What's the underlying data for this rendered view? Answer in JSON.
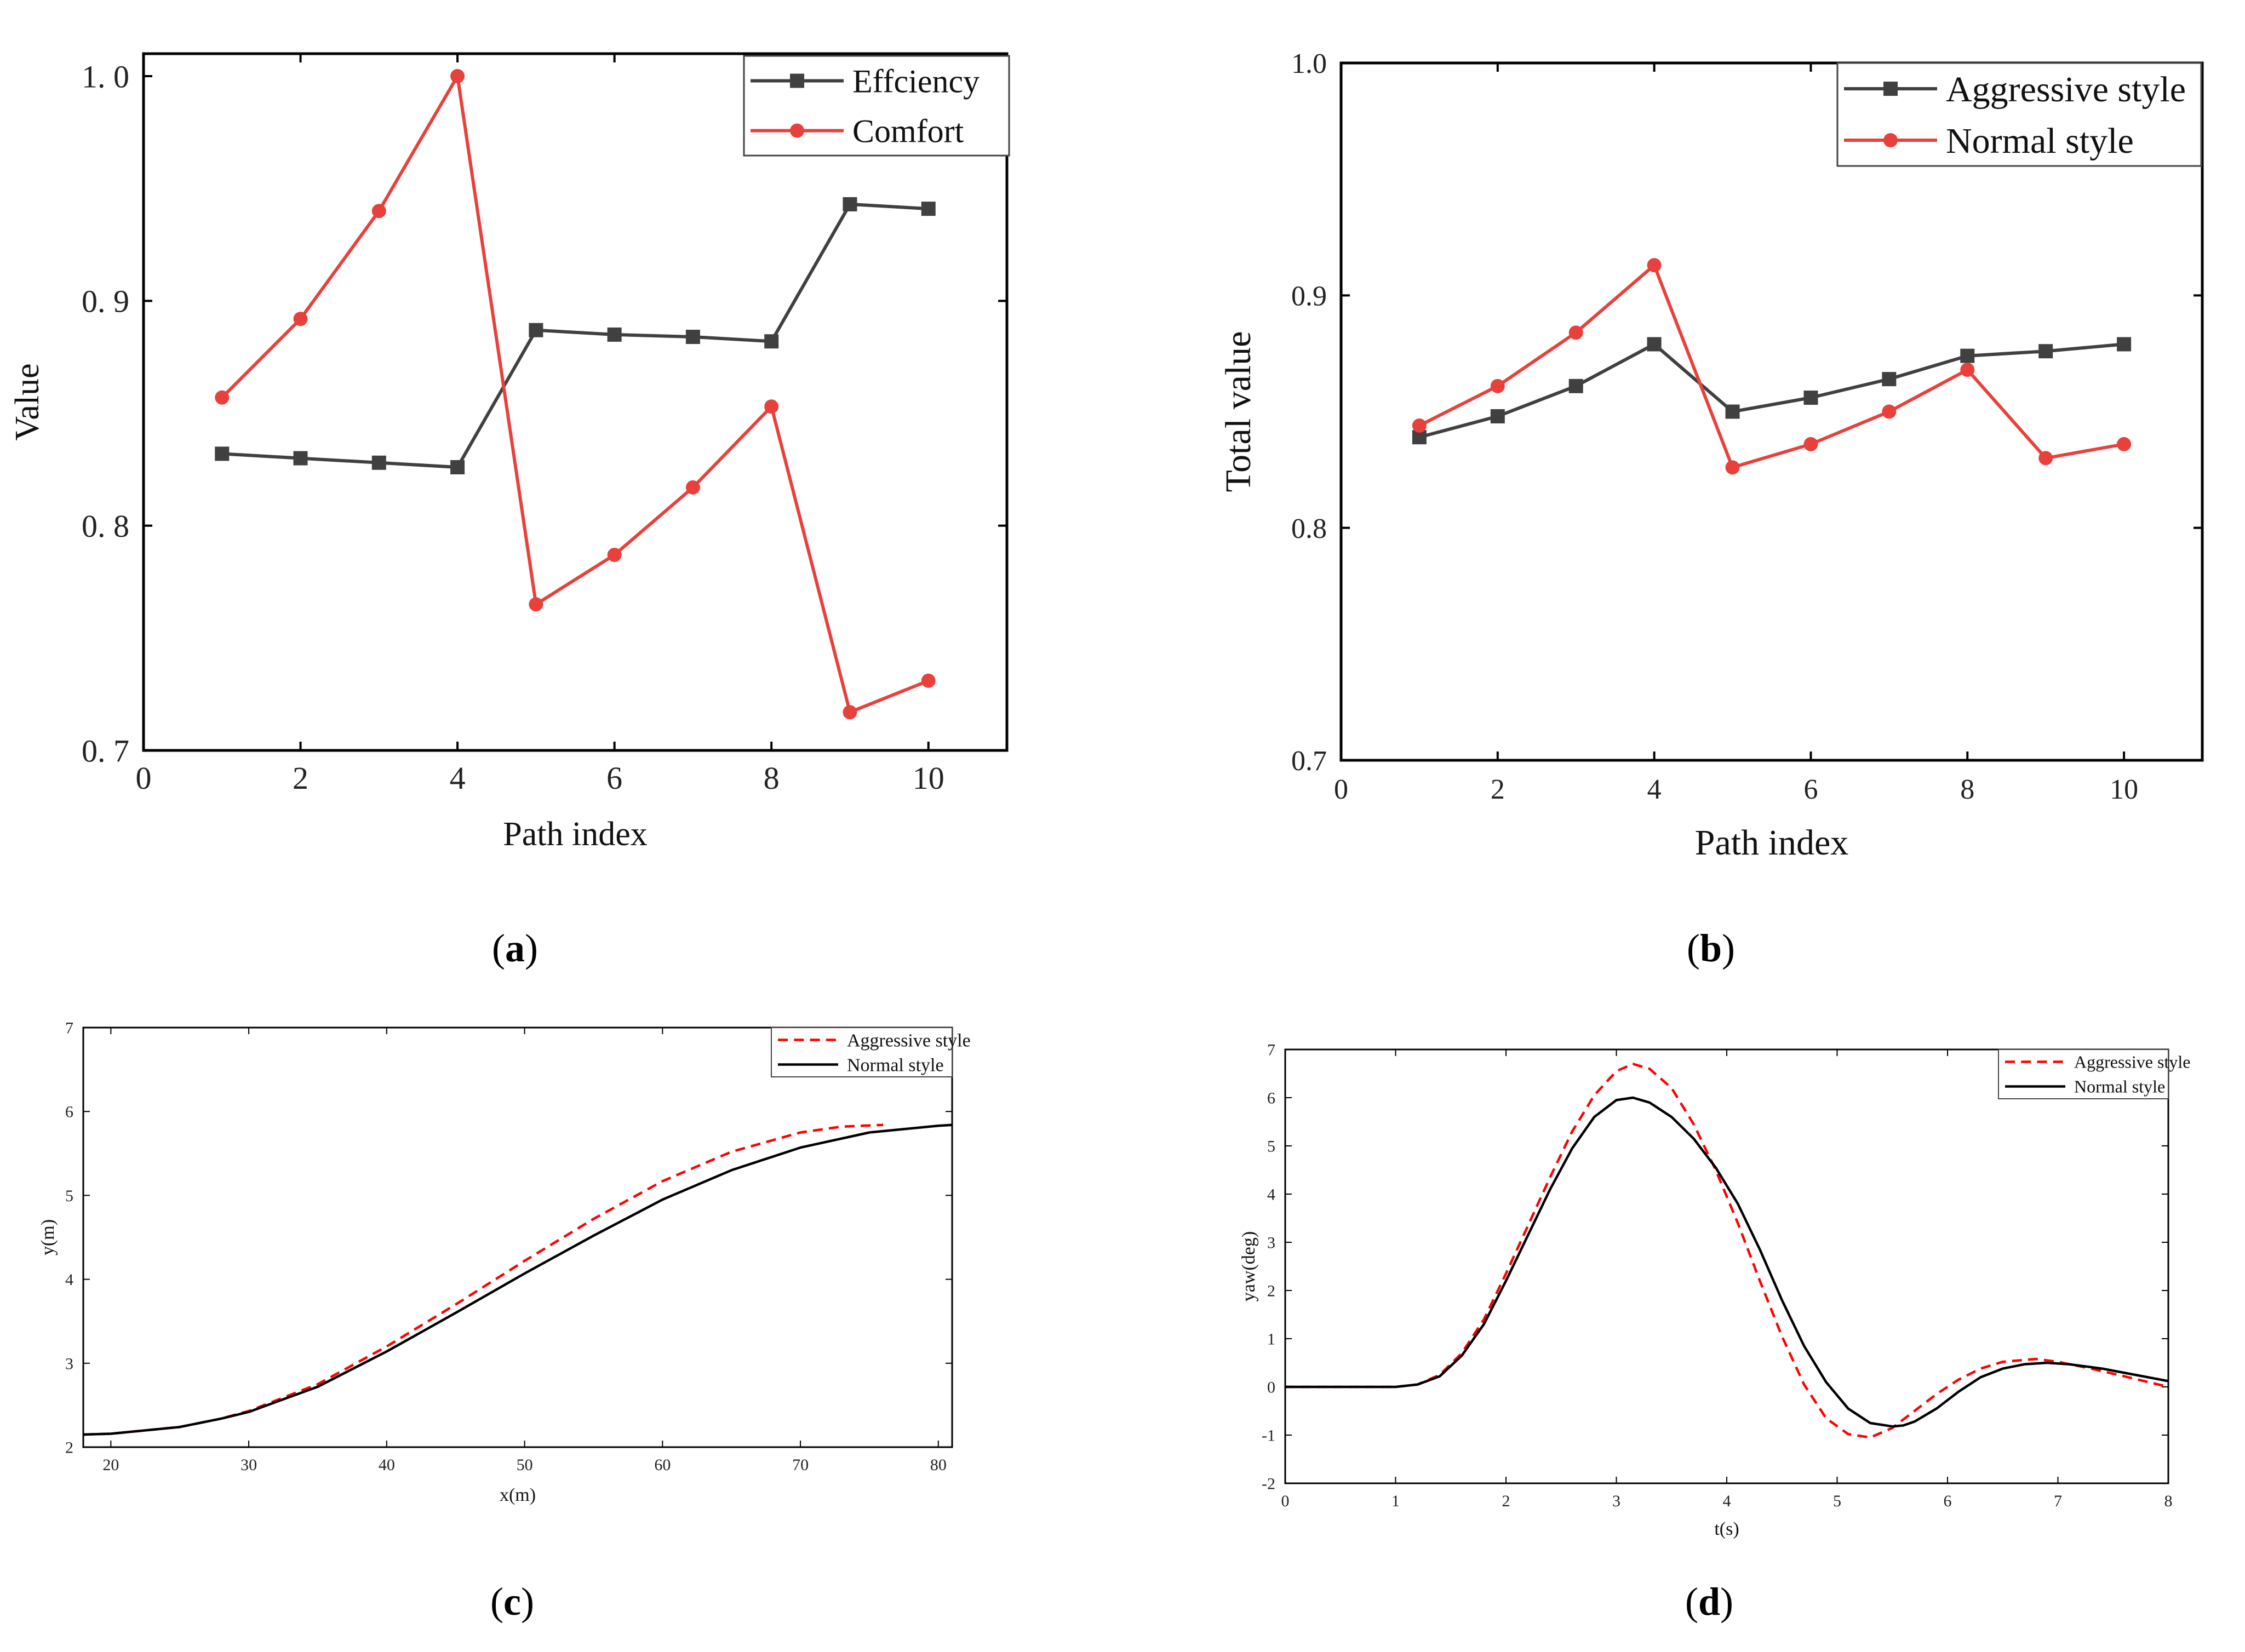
{
  "colors": {
    "efficiency": "#404040",
    "comfort": "#e8413c",
    "aggressive_dashed": "#ff0000",
    "normal_solid": "#000000",
    "axis": "#000000"
  },
  "chart_data": [
    {
      "id": "a",
      "type": "line",
      "panel_label": "(a)",
      "panel_letter": "a",
      "title": "",
      "xlabel": "Path index",
      "ylabel": "Value",
      "xlim": [
        0,
        11
      ],
      "ylim": [
        0.7,
        1.01
      ],
      "xticks": [
        0,
        2,
        4,
        6,
        8,
        10
      ],
      "xtick_labels": [
        "0",
        "2",
        "4",
        "6",
        "8",
        "10"
      ],
      "yticks": [
        0.7,
        0.8,
        0.9,
        1.0
      ],
      "ytick_labels": [
        "0. 7",
        "0. 8",
        "0. 9",
        "1. 0"
      ],
      "legend": "top-right",
      "series": [
        {
          "name": "Effciency",
          "marker": "square",
          "color": "#404040",
          "x": [
            1,
            2,
            3,
            4,
            5,
            6,
            7,
            8,
            9,
            10
          ],
          "values": [
            0.832,
            0.83,
            0.828,
            0.826,
            0.887,
            0.885,
            0.884,
            0.882,
            0.943,
            0.941
          ]
        },
        {
          "name": "Comfort",
          "marker": "circle",
          "color": "#e8413c",
          "x": [
            1,
            2,
            3,
            4,
            5,
            6,
            7,
            8,
            9,
            10
          ],
          "values": [
            0.857,
            0.892,
            0.94,
            1.0,
            0.765,
            0.787,
            0.817,
            0.853,
            0.717,
            0.731
          ]
        }
      ]
    },
    {
      "id": "b",
      "type": "line",
      "panel_label": "(b)",
      "panel_letter": "b",
      "title": "",
      "xlabel": "Path index",
      "ylabel": "Total value",
      "xlim": [
        0,
        11
      ],
      "ylim": [
        0.7,
        1.0
      ],
      "xticks": [
        0,
        2,
        4,
        6,
        8,
        10
      ],
      "xtick_labels": [
        "0",
        "2",
        "4",
        "6",
        "8",
        "10"
      ],
      "yticks": [
        0.7,
        0.8,
        0.9,
        1.0
      ],
      "ytick_labels": [
        "0.7",
        "0.8",
        "0.9",
        "1.0"
      ],
      "legend": "top-right",
      "series": [
        {
          "name": "Aggressive style",
          "marker": "square",
          "color": "#404040",
          "x": [
            1,
            2,
            3,
            4,
            5,
            6,
            7,
            8,
            9,
            10
          ],
          "values": [
            0.839,
            0.848,
            0.861,
            0.879,
            0.85,
            0.856,
            0.864,
            0.874,
            0.876,
            0.879
          ]
        },
        {
          "name": "Normal style",
          "marker": "circle",
          "color": "#e8413c",
          "x": [
            1,
            2,
            3,
            4,
            5,
            6,
            7,
            8,
            9,
            10
          ],
          "values": [
            0.844,
            0.861,
            0.884,
            0.913,
            0.826,
            0.836,
            0.85,
            0.868,
            0.83,
            0.836
          ]
        }
      ]
    },
    {
      "id": "c",
      "type": "line",
      "panel_label": "(c)",
      "panel_letter": "c",
      "title": "",
      "xlabel": "x(m)",
      "ylabel": "y(m)",
      "xlim": [
        18,
        81
      ],
      "ylim": [
        2,
        7
      ],
      "xticks": [
        20,
        30,
        40,
        50,
        60,
        70,
        80
      ],
      "xtick_labels": [
        "20",
        "30",
        "40",
        "50",
        "60",
        "70",
        "80"
      ],
      "yticks": [
        2,
        3,
        4,
        5,
        6,
        7
      ],
      "ytick_labels": [
        "2",
        "3",
        "4",
        "5",
        "6",
        "7"
      ],
      "legend": "top-right",
      "series": [
        {
          "name": "Aggressive style",
          "style": "dashed",
          "color": "#ff0000",
          "x": [
            18,
            20,
            25,
            28,
            30,
            35,
            40,
            45,
            50,
            55,
            60,
            65,
            70,
            73,
            76
          ],
          "values": [
            2.15,
            2.16,
            2.24,
            2.34,
            2.43,
            2.75,
            3.2,
            3.7,
            4.22,
            4.72,
            5.17,
            5.52,
            5.75,
            5.82,
            5.84
          ]
        },
        {
          "name": "Normal style",
          "style": "solid",
          "color": "#000000",
          "x": [
            18,
            20,
            25,
            28,
            30,
            35,
            40,
            45,
            50,
            55,
            60,
            65,
            70,
            75,
            80,
            81
          ],
          "values": [
            2.15,
            2.16,
            2.24,
            2.34,
            2.42,
            2.72,
            3.14,
            3.6,
            4.07,
            4.52,
            4.95,
            5.3,
            5.57,
            5.75,
            5.83,
            5.84
          ]
        }
      ]
    },
    {
      "id": "d",
      "type": "line",
      "panel_label": "(d)",
      "panel_letter": "d",
      "title": "",
      "xlabel": "t(s)",
      "ylabel": "yaw(deg)",
      "xlim": [
        0,
        8
      ],
      "ylim": [
        -2,
        7
      ],
      "xticks": [
        0,
        1,
        2,
        3,
        4,
        5,
        6,
        7,
        8
      ],
      "xtick_labels": [
        "0",
        "1",
        "2",
        "3",
        "4",
        "5",
        "6",
        "7",
        "8"
      ],
      "yticks": [
        -2,
        -1,
        0,
        1,
        2,
        3,
        4,
        5,
        6,
        7
      ],
      "ytick_labels": [
        "-2",
        "-1",
        "0",
        "1",
        "2",
        "3",
        "4",
        "5",
        "6",
        "7"
      ],
      "legend": "top-right",
      "series": [
        {
          "name": "Aggressive style",
          "style": "dashed",
          "color": "#ff0000",
          "x": [
            0,
            1.0,
            1.2,
            1.4,
            1.6,
            1.8,
            2.0,
            2.2,
            2.4,
            2.6,
            2.8,
            3.0,
            3.15,
            3.3,
            3.5,
            3.7,
            3.9,
            4.1,
            4.3,
            4.5,
            4.7,
            4.9,
            5.1,
            5.3,
            5.5,
            5.7,
            5.9,
            6.1,
            6.3,
            6.5,
            6.8,
            7.0,
            7.3,
            7.6,
            8.0
          ],
          "values": [
            0,
            0,
            0.05,
            0.25,
            0.7,
            1.4,
            2.35,
            3.35,
            4.35,
            5.3,
            6.05,
            6.55,
            6.7,
            6.6,
            6.2,
            5.45,
            4.5,
            3.4,
            2.2,
            1.05,
            0.05,
            -0.65,
            -0.98,
            -1.05,
            -0.85,
            -0.5,
            -0.15,
            0.15,
            0.38,
            0.52,
            0.58,
            0.52,
            0.38,
            0.22,
            0.0
          ]
        },
        {
          "name": "Normal style",
          "style": "solid",
          "color": "#000000",
          "x": [
            0,
            1.0,
            1.2,
            1.4,
            1.6,
            1.8,
            2.0,
            2.2,
            2.4,
            2.6,
            2.8,
            3.0,
            3.15,
            3.3,
            3.5,
            3.7,
            3.9,
            4.1,
            4.3,
            4.5,
            4.7,
            4.9,
            5.1,
            5.3,
            5.5,
            5.6,
            5.7,
            5.9,
            6.1,
            6.3,
            6.5,
            6.7,
            6.9,
            7.1,
            7.4,
            7.7,
            8.0
          ],
          "values": [
            0,
            0,
            0.05,
            0.22,
            0.65,
            1.3,
            2.2,
            3.15,
            4.1,
            4.95,
            5.6,
            5.95,
            6.0,
            5.9,
            5.6,
            5.15,
            4.55,
            3.8,
            2.85,
            1.8,
            0.85,
            0.1,
            -0.45,
            -0.75,
            -0.82,
            -0.8,
            -0.72,
            -0.45,
            -0.1,
            0.2,
            0.38,
            0.47,
            0.5,
            0.47,
            0.38,
            0.25,
            0.12
          ]
        }
      ]
    }
  ]
}
